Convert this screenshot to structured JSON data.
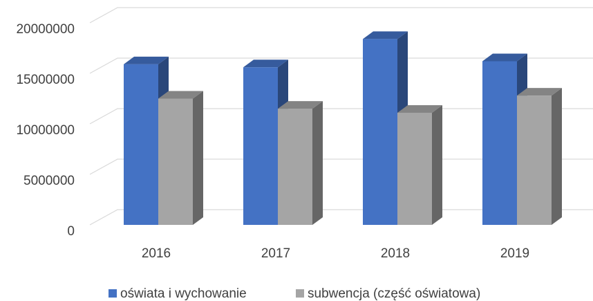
{
  "chart_data": {
    "type": "bar3d",
    "categories": [
      "2016",
      "2017",
      "2018",
      "2019"
    ],
    "series": [
      {
        "name": "oświata i wychowanie",
        "color": "#4472c4",
        "values": [
          15900000,
          15600000,
          18400000,
          16200000
        ]
      },
      {
        "name": "subwencja (część oświatowa)",
        "color": "#a5a5a5",
        "values": [
          12500000,
          11500000,
          11100000,
          12800000
        ]
      }
    ],
    "ylim": [
      0,
      20000000
    ],
    "yticks": [
      0,
      5000000,
      10000000,
      15000000,
      20000000
    ],
    "grid": true,
    "legend": "bottom"
  }
}
